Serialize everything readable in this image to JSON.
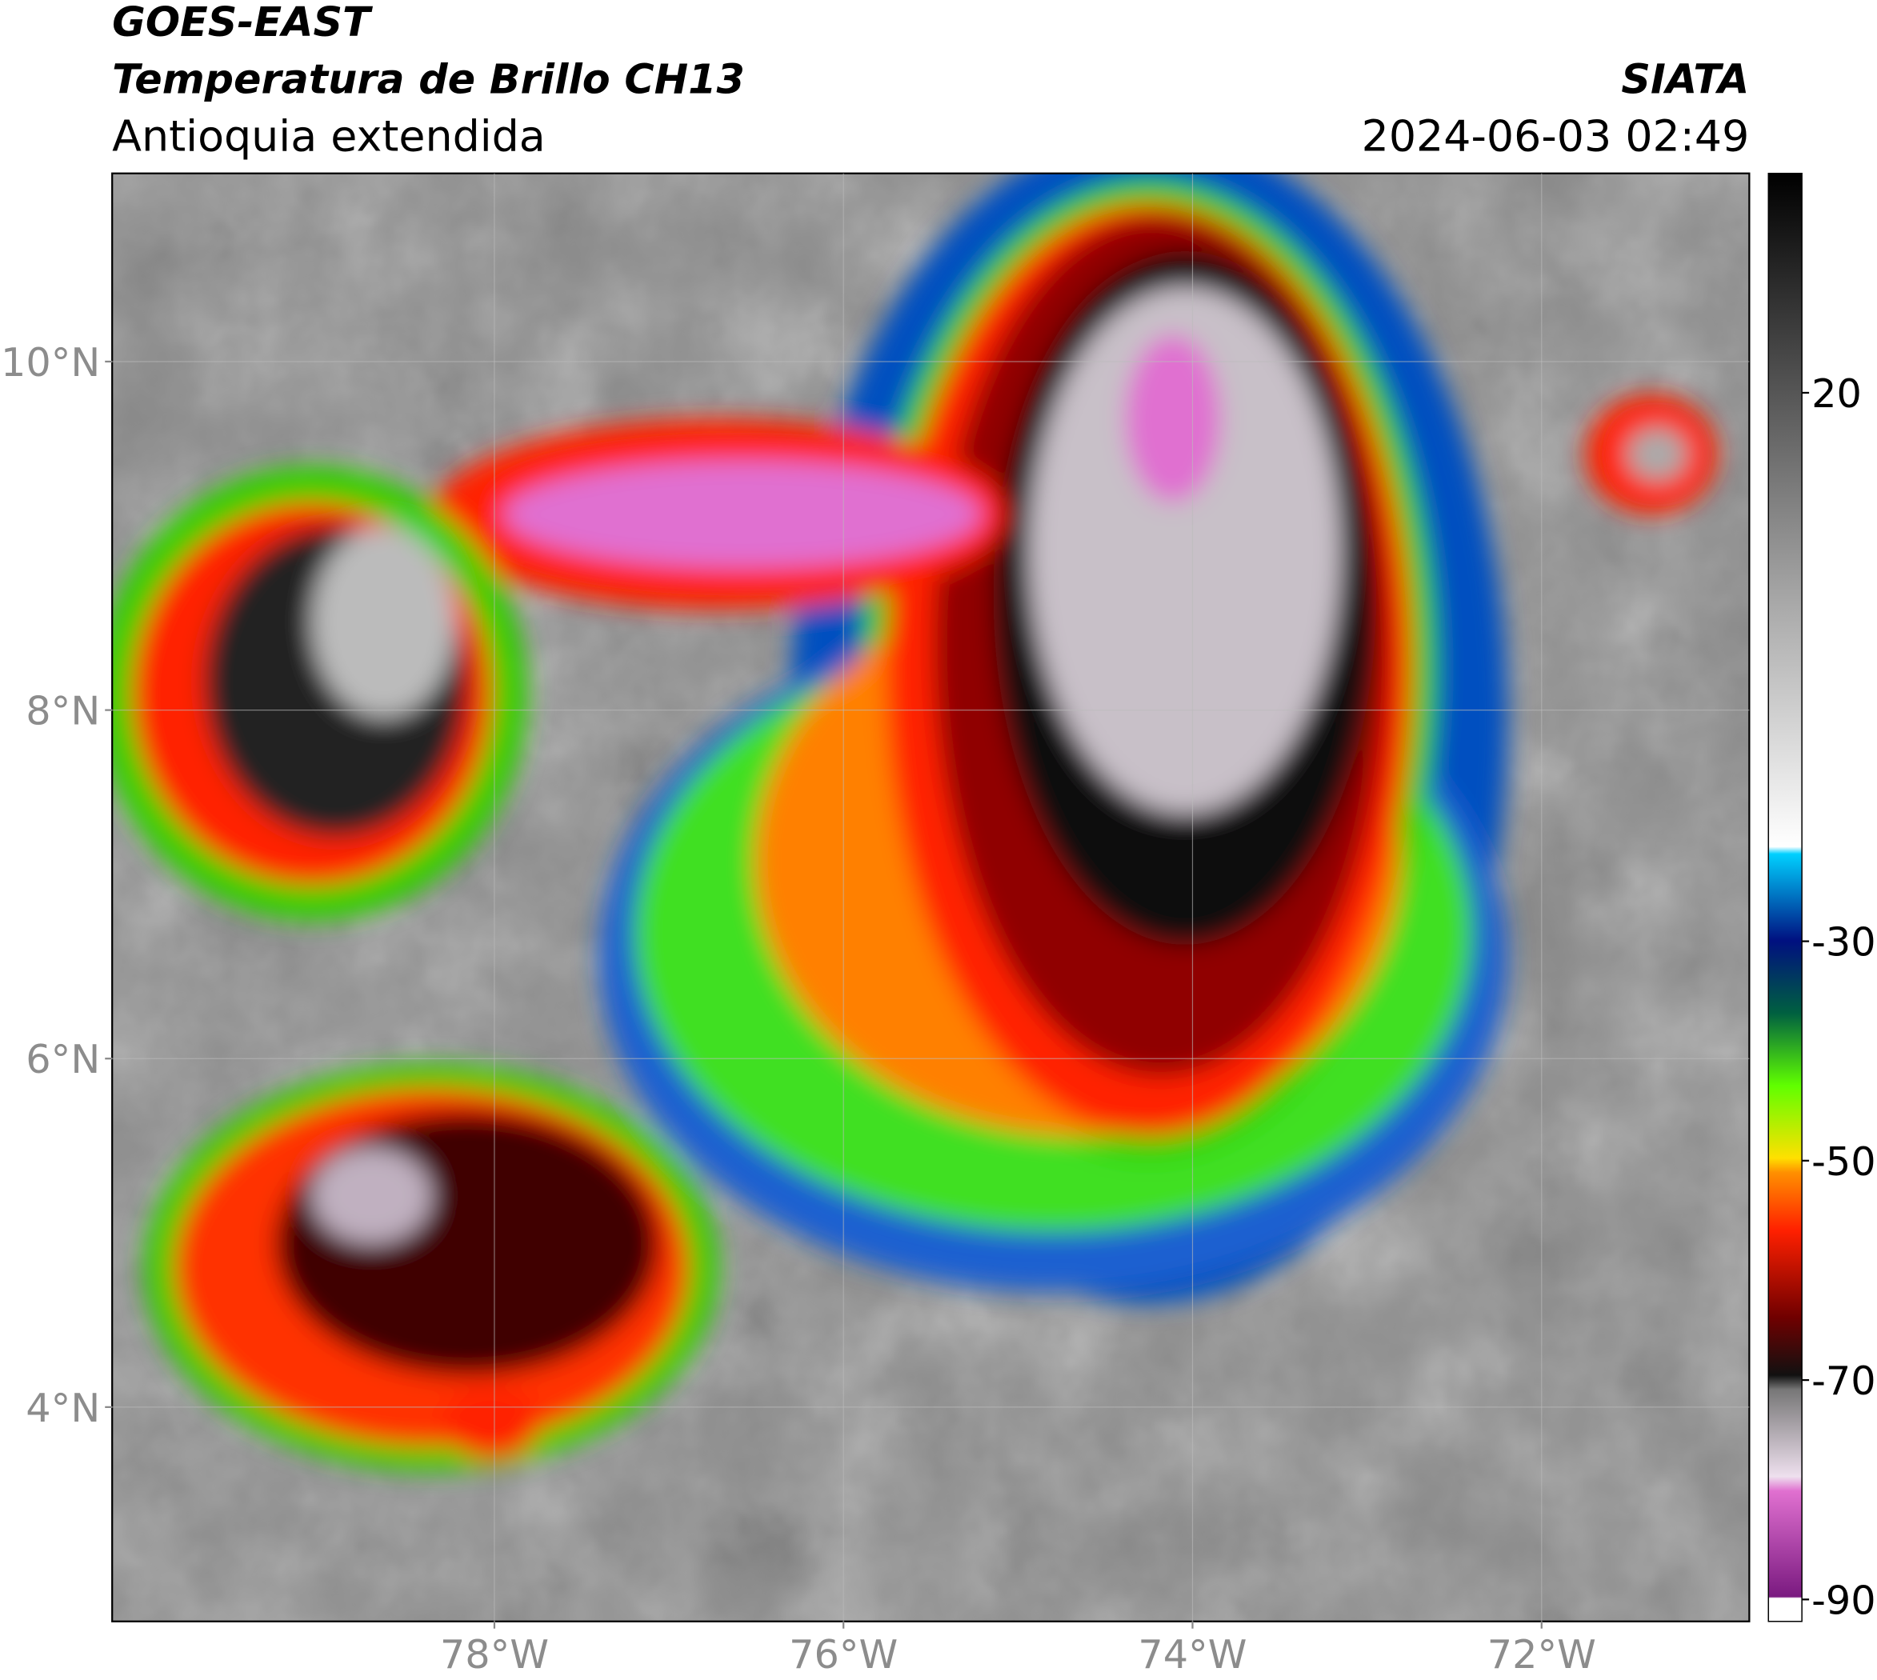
{
  "header": {
    "title": "GOES-EAST",
    "subtitle": "Temperatura de Brillo CH13",
    "region": "Antioquia extendida",
    "source": "SIATA",
    "datetime": "2024-06-03 02:49"
  },
  "map": {
    "xlim": [
      -80.19,
      -70.81
    ],
    "ylim": [
      2.77,
      11.08
    ],
    "xticks": [
      {
        "value": -78,
        "label": "78°W"
      },
      {
        "value": -76,
        "label": "76°W"
      },
      {
        "value": -74,
        "label": "74°W"
      },
      {
        "value": -72,
        "label": "72°W"
      }
    ],
    "yticks": [
      {
        "value": 10,
        "label": "10°N"
      },
      {
        "value": 8,
        "label": "8°N"
      },
      {
        "value": 6,
        "label": "6°N"
      },
      {
        "value": 4,
        "label": "4°N"
      }
    ]
  },
  "colorbar": {
    "lim": [
      -92,
      40
    ],
    "ticks": [
      20,
      -30,
      -50,
      -70,
      -90
    ]
  }
}
